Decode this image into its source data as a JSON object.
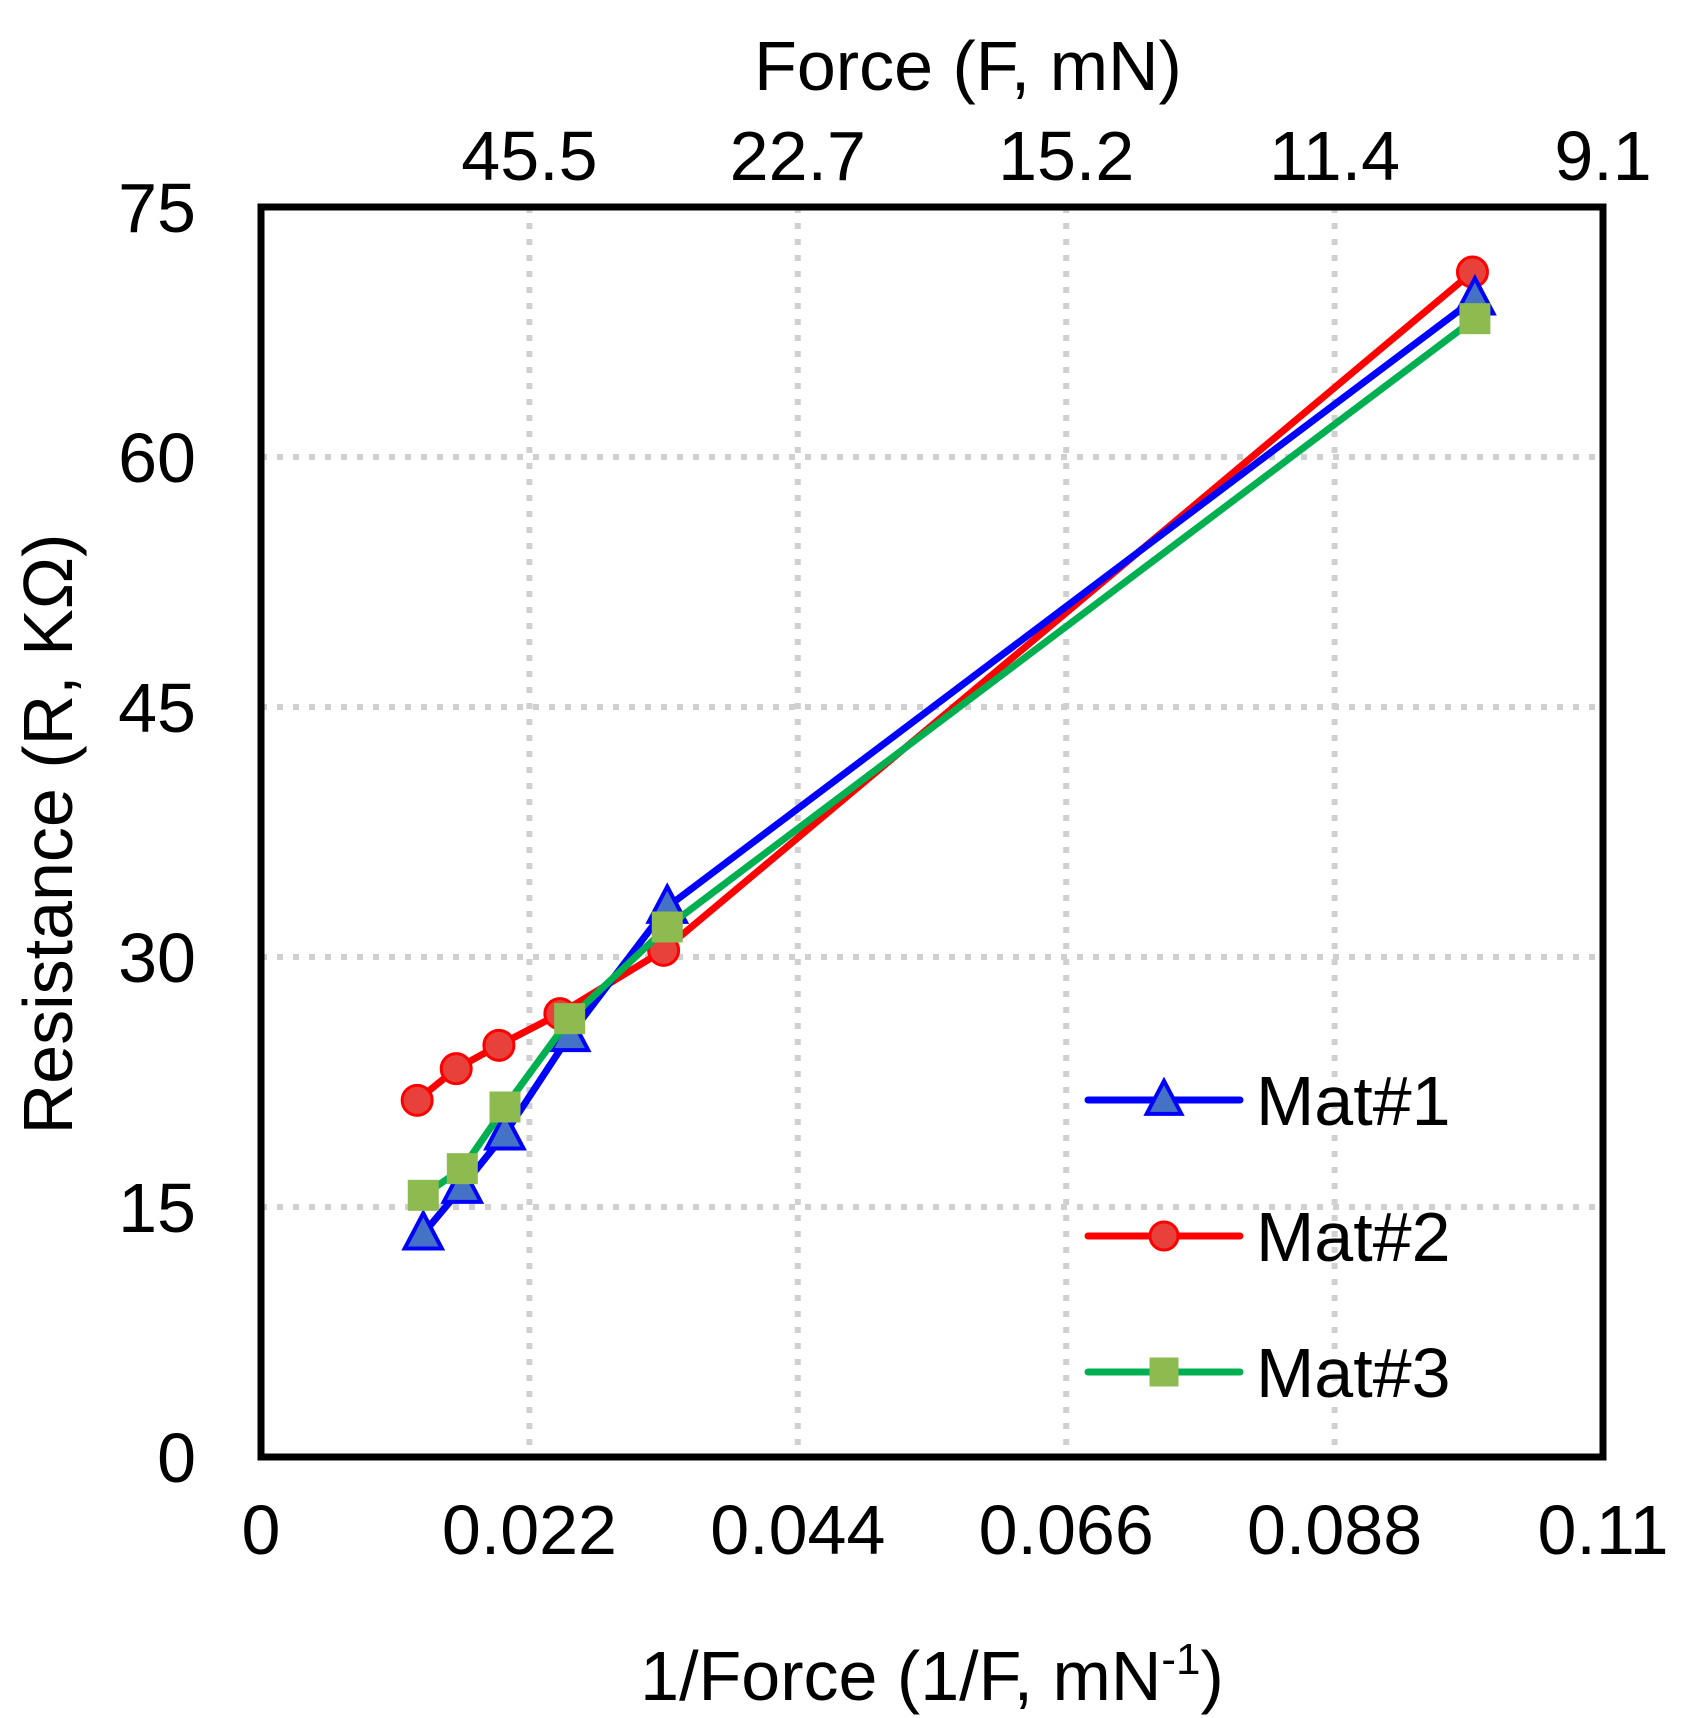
{
  "chart_data": {
    "type": "line",
    "title": "",
    "xlabel": {
      "main": "1/Force (1/F, mN",
      "superscript": "-1",
      "suffix": ")"
    },
    "ylabel": "Resistance (R, KΩ)",
    "x2label": "Force (F, mN)",
    "xlim": [
      0,
      0.11
    ],
    "ylim": [
      0,
      75
    ],
    "x_ticks": [
      0,
      0.022,
      0.044,
      0.066,
      0.088,
      0.11
    ],
    "x_tick_labels": [
      "0",
      "0.022",
      "0.044",
      "0.066",
      "0.088",
      "0.11"
    ],
    "y_ticks": [
      0,
      15,
      30,
      45,
      60,
      75
    ],
    "y_tick_labels": [
      "0",
      "15",
      "30",
      "45",
      "60",
      "75"
    ],
    "x2_ticks": [
      {
        "label": "45.5",
        "x": 0.022
      },
      {
        "label": "22.7",
        "x": 0.044
      },
      {
        "label": "15.2",
        "x": 0.066
      },
      {
        "label": "11.4",
        "x": 0.088
      },
      {
        "label": "9.1",
        "x": 0.11
      }
    ],
    "grid": true,
    "legend_position": "bottom-right",
    "series": [
      {
        "name": "Mat#1",
        "color": "#0000ff",
        "marker": "triangle",
        "marker_fill": "#4472c4",
        "x": [
          0.0133,
          0.0165,
          0.02,
          0.0253,
          0.0333,
          0.0995
        ],
        "y": [
          13.4,
          16.2,
          19.4,
          25.3,
          33.0,
          69.5
        ]
      },
      {
        "name": "Mat#2",
        "color": "#ff0000",
        "marker": "circle",
        "marker_fill": "#e8403a",
        "x": [
          0.0128,
          0.016,
          0.0195,
          0.0245,
          0.033,
          0.0993
        ],
        "y": [
          21.4,
          23.3,
          24.7,
          26.6,
          30.4,
          71.1
        ]
      },
      {
        "name": "Mat#3",
        "color": "#00b050",
        "marker": "square",
        "marker_fill": "#8dbb4f",
        "x": [
          0.0133,
          0.0165,
          0.02,
          0.0253,
          0.0333,
          0.0995
        ],
        "y": [
          15.7,
          17.3,
          21.0,
          26.3,
          31.8,
          68.3
        ]
      }
    ]
  }
}
